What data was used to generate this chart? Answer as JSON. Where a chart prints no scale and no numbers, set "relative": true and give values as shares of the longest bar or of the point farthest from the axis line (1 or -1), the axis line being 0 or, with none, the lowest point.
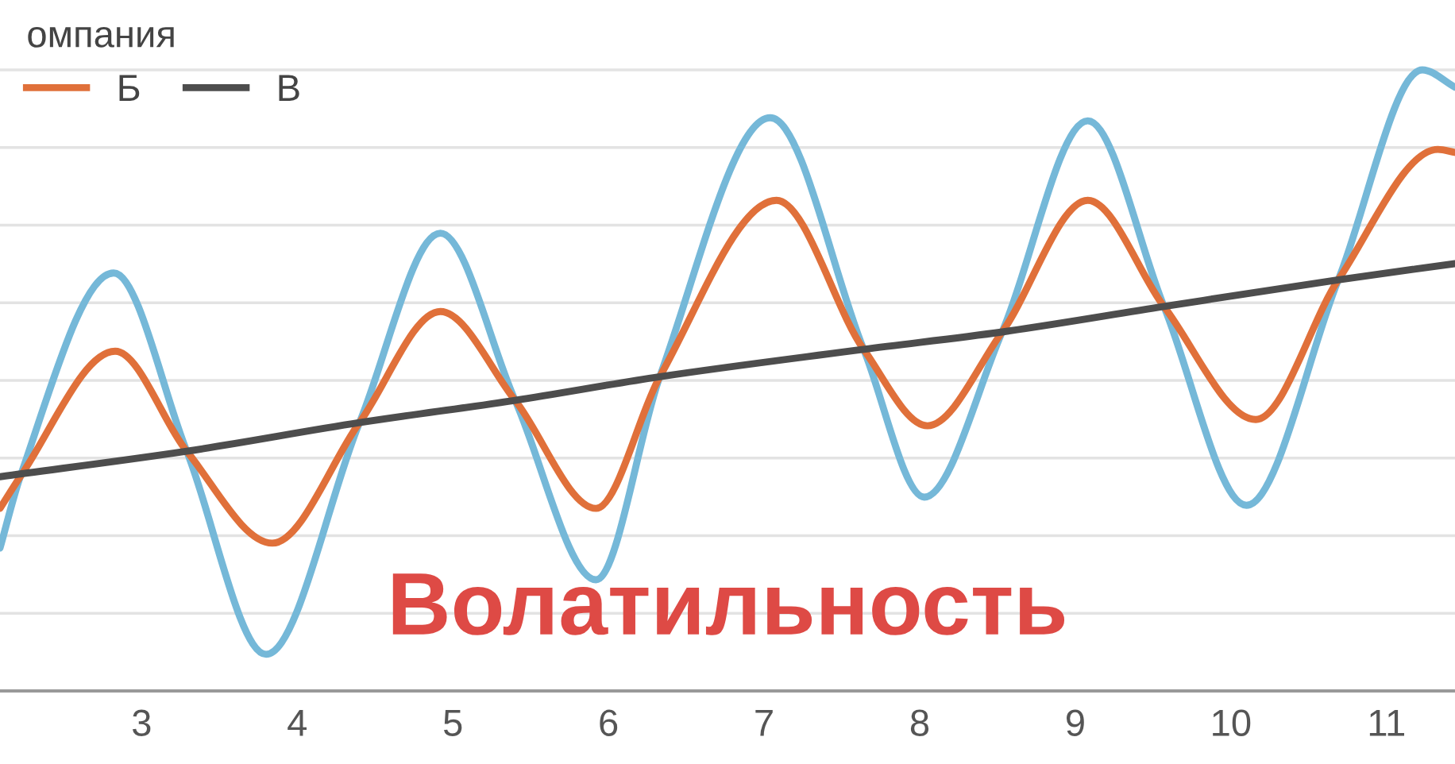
{
  "chart_data": {
    "type": "line",
    "relative": true,
    "legend_title": "омпания",
    "legend": "top left",
    "grid": "y",
    "marker": "none",
    "line_style": "solid",
    "xlim": [
      2.09,
      11.44
    ],
    "xticks": [
      3,
      4,
      5,
      6,
      7,
      8,
      9,
      10,
      11
    ],
    "annotations": [
      "Волатильность"
    ],
    "series": [
      {
        "color": "#75b8d8",
        "x": [
          2.09,
          2.22,
          2.82,
          3.29,
          3.8,
          4.4,
          4.92,
          5.4,
          5.92,
          6.33,
          7.04,
          7.64,
          8.03,
          8.53,
          9.08,
          9.57,
          10.1,
          10.69,
          11.23,
          11.44
        ],
        "values": [
          0.23,
          0.345,
          0.673,
          0.386,
          0.059,
          0.432,
          0.737,
          0.468,
          0.179,
          0.506,
          0.923,
          0.55,
          0.312,
          0.578,
          0.918,
          0.619,
          0.299,
          0.662,
          1.0,
          0.972
        ]
      },
      {
        "name": "Б",
        "color": "#e0703a",
        "x": [
          2.09,
          2.22,
          2.83,
          3.29,
          3.84,
          4.4,
          4.92,
          5.4,
          5.92,
          6.33,
          7.08,
          7.64,
          8.05,
          8.53,
          9.08,
          9.57,
          10.16,
          10.69,
          11.33,
          11.44
        ],
        "values": [
          0.294,
          0.345,
          0.547,
          0.386,
          0.238,
          0.432,
          0.611,
          0.468,
          0.294,
          0.506,
          0.79,
          0.55,
          0.427,
          0.578,
          0.79,
          0.619,
          0.437,
          0.662,
          0.872,
          0.867
        ]
      },
      {
        "name": "В",
        "color": "#4d4d4d",
        "x": [
          2.09,
          3.29,
          4.4,
          5.4,
          6.33,
          7.64,
          8.53,
          9.57,
          10.69,
          11.44
        ],
        "values": [
          0.345,
          0.386,
          0.432,
          0.468,
          0.506,
          0.55,
          0.578,
          0.619,
          0.662,
          0.688
        ]
      }
    ]
  }
}
